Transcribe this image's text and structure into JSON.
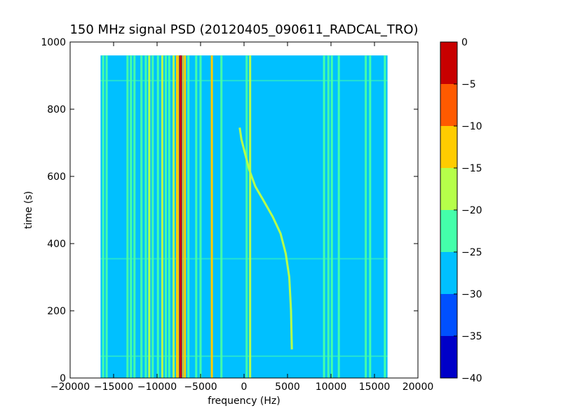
{
  "chart_data": {
    "type": "heatmap",
    "title": "150 MHz signal PSD (20120405_090611_RADCAL_TRO)",
    "xlabel": "frequency (Hz)",
    "ylabel": "time (s)",
    "xlim": [
      -20000,
      20000
    ],
    "ylim": [
      0,
      1000
    ],
    "xticks": [
      -20000,
      -15000,
      -10000,
      -5000,
      0,
      5000,
      10000,
      15000,
      20000
    ],
    "yticks": [
      0,
      200,
      400,
      600,
      800,
      1000
    ],
    "data_extent": {
      "x": [
        -16500,
        16500
      ],
      "y": [
        0,
        960
      ]
    },
    "background_level": -28,
    "colorbar": {
      "range": [
        -40,
        0
      ],
      "levels": [
        -40,
        -35,
        -30,
        -25,
        -20,
        -15,
        -10,
        -5,
        0
      ],
      "ticks": [
        0,
        -5,
        -10,
        -15,
        -20,
        -25,
        -30,
        -35,
        -40
      ],
      "colors": [
        "#0000c8",
        "#0050ff",
        "#00c0ff",
        "#44ffaa",
        "#b6ff4a",
        "#ffcc00",
        "#ff5a00",
        "#c80000"
      ]
    },
    "vertical_lines": [
      {
        "freq": -16200,
        "level": -22
      },
      {
        "freq": -15800,
        "level": -24
      },
      {
        "freq": -13400,
        "level": -24
      },
      {
        "freq": -13000,
        "level": -22
      },
      {
        "freq": -12600,
        "level": -24
      },
      {
        "freq": -11800,
        "level": -24
      },
      {
        "freq": -11300,
        "level": -22
      },
      {
        "freq": -10900,
        "level": -18
      },
      {
        "freq": -10500,
        "level": -22
      },
      {
        "freq": -9900,
        "level": -22
      },
      {
        "freq": -9400,
        "level": -18
      },
      {
        "freq": -9000,
        "level": -22
      },
      {
        "freq": -8600,
        "level": -24
      },
      {
        "freq": -8100,
        "level": -18
      },
      {
        "freq": -7700,
        "level": -13
      },
      {
        "freq": -7300,
        "level": -3
      },
      {
        "freq": -6800,
        "level": -13
      },
      {
        "freq": -6400,
        "level": -22
      },
      {
        "freq": -5500,
        "level": -24
      },
      {
        "freq": -5000,
        "level": -22
      },
      {
        "freq": -3700,
        "level": -13
      },
      {
        "freq": -2600,
        "level": -22
      },
      {
        "freq": 300,
        "level": -24
      },
      {
        "freq": 700,
        "level": -18
      },
      {
        "freq": 9200,
        "level": -22
      },
      {
        "freq": 9700,
        "level": -22
      },
      {
        "freq": 10100,
        "level": -24
      },
      {
        "freq": 10900,
        "level": -24
      },
      {
        "freq": 14000,
        "level": -24
      },
      {
        "freq": 14500,
        "level": -22
      },
      {
        "freq": 16200,
        "level": -24
      }
    ],
    "drifting_signal": {
      "level": -20,
      "points": [
        [
          5500,
          85
        ],
        [
          5400,
          200
        ],
        [
          5200,
          300
        ],
        [
          4800,
          370
        ],
        [
          4200,
          430
        ],
        [
          3300,
          480
        ],
        [
          2200,
          530
        ],
        [
          1300,
          570
        ],
        [
          600,
          620
        ],
        [
          100,
          670
        ],
        [
          -300,
          710
        ],
        [
          -500,
          745
        ]
      ]
    },
    "horizontal_streaks": [
      {
        "time": 885,
        "level": -22
      },
      {
        "time": 355,
        "level": -22
      },
      {
        "time": 65,
        "level": -22
      }
    ]
  }
}
